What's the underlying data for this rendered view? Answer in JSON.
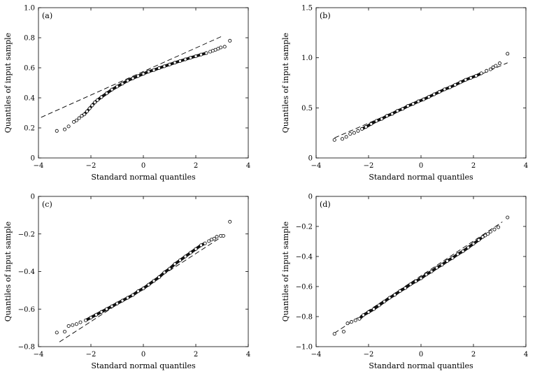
{
  "chart_data": [
    {
      "type": "scatter",
      "panel_label": "(a)",
      "xlabel": "Standard normal quantiles",
      "ylabel": "Quantiles of input sample",
      "xlim": [
        -4,
        4
      ],
      "ylim": [
        0,
        1.0
      ],
      "xticks": [
        -4,
        -2,
        0,
        2,
        4
      ],
      "yticks": [
        0,
        0.2,
        0.4,
        0.6,
        0.8,
        1.0
      ],
      "xtick_labels": [
        "−4",
        "−2",
        "0",
        "2",
        "4"
      ],
      "ytick_labels": [
        "0",
        "0.2",
        "0.4",
        "0.6",
        "0.8",
        "1.0"
      ],
      "grid": false,
      "reference_line": {
        "style": "dashed",
        "x": [
          -3.9,
          3.0
        ],
        "y": [
          0.27,
          0.81
        ]
      },
      "points": [
        [
          -3.3,
          0.18
        ],
        [
          -3.0,
          0.19
        ],
        [
          -2.85,
          0.21
        ],
        [
          -2.65,
          0.24
        ],
        [
          -2.55,
          0.25
        ],
        [
          -2.45,
          0.265
        ],
        [
          -2.35,
          0.28
        ],
        [
          -2.25,
          0.29
        ],
        [
          -2.15,
          0.31
        ],
        [
          -2.05,
          0.33
        ],
        [
          -1.95,
          0.35
        ],
        [
          -1.85,
          0.37
        ],
        [
          -1.75,
          0.385
        ],
        [
          -1.6,
          0.405
        ],
        [
          -1.4,
          0.43
        ],
        [
          -1.2,
          0.455
        ],
        [
          -1.0,
          0.475
        ],
        [
          -0.8,
          0.495
        ],
        [
          -0.6,
          0.515
        ],
        [
          -0.4,
          0.53
        ],
        [
          -0.2,
          0.545
        ],
        [
          0.0,
          0.56
        ],
        [
          0.2,
          0.575
        ],
        [
          0.4,
          0.585
        ],
        [
          0.6,
          0.598
        ],
        [
          0.8,
          0.61
        ],
        [
          1.0,
          0.622
        ],
        [
          1.2,
          0.634
        ],
        [
          1.4,
          0.645
        ],
        [
          1.6,
          0.656
        ],
        [
          1.8,
          0.667
        ],
        [
          2.0,
          0.677
        ],
        [
          2.2,
          0.688
        ],
        [
          2.4,
          0.698
        ],
        [
          2.55,
          0.707
        ],
        [
          2.65,
          0.714
        ],
        [
          2.75,
          0.72
        ],
        [
          2.85,
          0.727
        ],
        [
          2.95,
          0.735
        ],
        [
          3.1,
          0.74
        ],
        [
          3.3,
          0.78
        ]
      ]
    },
    {
      "type": "scatter",
      "panel_label": "(b)",
      "xlabel": "Standard normal quantiles",
      "ylabel": "Quantiles of input sample",
      "xlim": [
        -4,
        4
      ],
      "ylim": [
        0,
        1.5
      ],
      "xticks": [
        -4,
        -2,
        0,
        2,
        4
      ],
      "yticks": [
        0,
        0.5,
        1.0,
        1.5
      ],
      "xtick_labels": [
        "−4",
        "−2",
        "0",
        "2",
        "4"
      ],
      "ytick_labels": [
        "0",
        "0.5",
        "1.0",
        "1.5"
      ],
      "grid": false,
      "reference_line": {
        "style": "dashed",
        "x": [
          -3.3,
          3.3
        ],
        "y": [
          0.2,
          0.95
        ]
      },
      "points": [
        [
          -3.3,
          0.18
        ],
        [
          -3.0,
          0.19
        ],
        [
          -2.85,
          0.21
        ],
        [
          -2.7,
          0.24
        ],
        [
          -2.55,
          0.25
        ],
        [
          -2.4,
          0.27
        ],
        [
          -2.25,
          0.29
        ],
        [
          -2.1,
          0.31
        ],
        [
          -1.9,
          0.34
        ],
        [
          -1.7,
          0.37
        ],
        [
          -1.5,
          0.39
        ],
        [
          -1.3,
          0.42
        ],
        [
          -1.1,
          0.44
        ],
        [
          -0.9,
          0.47
        ],
        [
          -0.7,
          0.49
        ],
        [
          -0.5,
          0.52
        ],
        [
          -0.3,
          0.54
        ],
        [
          -0.1,
          0.565
        ],
        [
          0.1,
          0.585
        ],
        [
          0.3,
          0.61
        ],
        [
          0.5,
          0.635
        ],
        [
          0.7,
          0.66
        ],
        [
          0.9,
          0.685
        ],
        [
          1.1,
          0.705
        ],
        [
          1.3,
          0.73
        ],
        [
          1.5,
          0.755
        ],
        [
          1.7,
          0.78
        ],
        [
          1.9,
          0.8
        ],
        [
          2.1,
          0.82
        ],
        [
          2.3,
          0.845
        ],
        [
          2.5,
          0.87
        ],
        [
          2.65,
          0.885
        ],
        [
          2.75,
          0.905
        ],
        [
          2.85,
          0.92
        ],
        [
          3.0,
          0.945
        ],
        [
          3.3,
          1.04
        ]
      ]
    },
    {
      "type": "scatter",
      "panel_label": "(c)",
      "xlabel": "Standard normal quantiles",
      "ylabel": "Quantiles of input sample",
      "xlim": [
        -4,
        4
      ],
      "ylim": [
        -0.8,
        0
      ],
      "xticks": [
        -4,
        -2,
        0,
        2,
        4
      ],
      "yticks": [
        -0.8,
        -0.6,
        -0.4,
        -0.2,
        0
      ],
      "xtick_labels": [
        "−4",
        "−2",
        "0",
        "2",
        "4"
      ],
      "ytick_labels": [
        "−0.8",
        "−0.6",
        "−0.4",
        "−0.2",
        "0"
      ],
      "grid": false,
      "reference_line": {
        "style": "dashed",
        "x": [
          -3.2,
          3.1
        ],
        "y": [
          -0.775,
          -0.205
        ]
      },
      "points": [
        [
          -3.3,
          -0.725
        ],
        [
          -3.0,
          -0.72
        ],
        [
          -2.85,
          -0.69
        ],
        [
          -2.7,
          -0.685
        ],
        [
          -2.55,
          -0.68
        ],
        [
          -2.4,
          -0.67
        ],
        [
          -2.2,
          -0.66
        ],
        [
          -2.0,
          -0.645
        ],
        [
          -1.8,
          -0.63
        ],
        [
          -1.6,
          -0.615
        ],
        [
          -1.4,
          -0.6
        ],
        [
          -1.2,
          -0.585
        ],
        [
          -1.0,
          -0.57
        ],
        [
          -0.8,
          -0.555
        ],
        [
          -0.6,
          -0.54
        ],
        [
          -0.4,
          -0.525
        ],
        [
          -0.2,
          -0.505
        ],
        [
          0.0,
          -0.49
        ],
        [
          0.2,
          -0.47
        ],
        [
          0.4,
          -0.45
        ],
        [
          0.6,
          -0.43
        ],
        [
          0.8,
          -0.405
        ],
        [
          1.0,
          -0.385
        ],
        [
          1.2,
          -0.36
        ],
        [
          1.4,
          -0.34
        ],
        [
          1.6,
          -0.32
        ],
        [
          1.8,
          -0.3
        ],
        [
          2.0,
          -0.28
        ],
        [
          2.2,
          -0.26
        ],
        [
          2.35,
          -0.25
        ],
        [
          2.5,
          -0.238
        ],
        [
          2.6,
          -0.23
        ],
        [
          2.7,
          -0.225
        ],
        [
          2.8,
          -0.215
        ],
        [
          2.95,
          -0.21
        ],
        [
          3.05,
          -0.21
        ],
        [
          3.3,
          -0.135
        ]
      ]
    },
    {
      "type": "scatter",
      "panel_label": "(d)",
      "xlabel": "Standard normal quantiles",
      "ylabel": "Quantiles of input sample",
      "xlim": [
        -4,
        4
      ],
      "ylim": [
        -1.0,
        0
      ],
      "xticks": [
        -4,
        -2,
        0,
        2,
        4
      ],
      "yticks": [
        -1.0,
        -0.8,
        -0.6,
        -0.4,
        -0.2,
        0
      ],
      "xtick_labels": [
        "−4",
        "−2",
        "0",
        "2",
        "4"
      ],
      "ytick_labels": [
        "−1.0",
        "−0.8",
        "−0.6",
        "−0.4",
        "−0.2",
        "0"
      ],
      "grid": false,
      "reference_line": {
        "style": "dashed",
        "x": [
          -3.3,
          3.1
        ],
        "y": [
          -0.91,
          -0.17
        ]
      },
      "points": [
        [
          -3.3,
          -0.915
        ],
        [
          -2.95,
          -0.9
        ],
        [
          -2.8,
          -0.845
        ],
        [
          -2.65,
          -0.835
        ],
        [
          -2.5,
          -0.825
        ],
        [
          -2.35,
          -0.815
        ],
        [
          -2.2,
          -0.79
        ],
        [
          -2.0,
          -0.77
        ],
        [
          -1.8,
          -0.75
        ],
        [
          -1.6,
          -0.725
        ],
        [
          -1.4,
          -0.7
        ],
        [
          -1.2,
          -0.675
        ],
        [
          -1.0,
          -0.655
        ],
        [
          -0.8,
          -0.63
        ],
        [
          -0.6,
          -0.61
        ],
        [
          -0.4,
          -0.585
        ],
        [
          -0.2,
          -0.565
        ],
        [
          0.0,
          -0.545
        ],
        [
          0.2,
          -0.52
        ],
        [
          0.4,
          -0.5
        ],
        [
          0.6,
          -0.475
        ],
        [
          0.8,
          -0.455
        ],
        [
          1.0,
          -0.43
        ],
        [
          1.2,
          -0.41
        ],
        [
          1.4,
          -0.385
        ],
        [
          1.6,
          -0.365
        ],
        [
          1.8,
          -0.34
        ],
        [
          2.0,
          -0.315
        ],
        [
          2.2,
          -0.29
        ],
        [
          2.35,
          -0.27
        ],
        [
          2.45,
          -0.26
        ],
        [
          2.55,
          -0.25
        ],
        [
          2.65,
          -0.235
        ],
        [
          2.8,
          -0.22
        ],
        [
          2.95,
          -0.205
        ],
        [
          3.3,
          -0.14
        ]
      ]
    }
  ]
}
